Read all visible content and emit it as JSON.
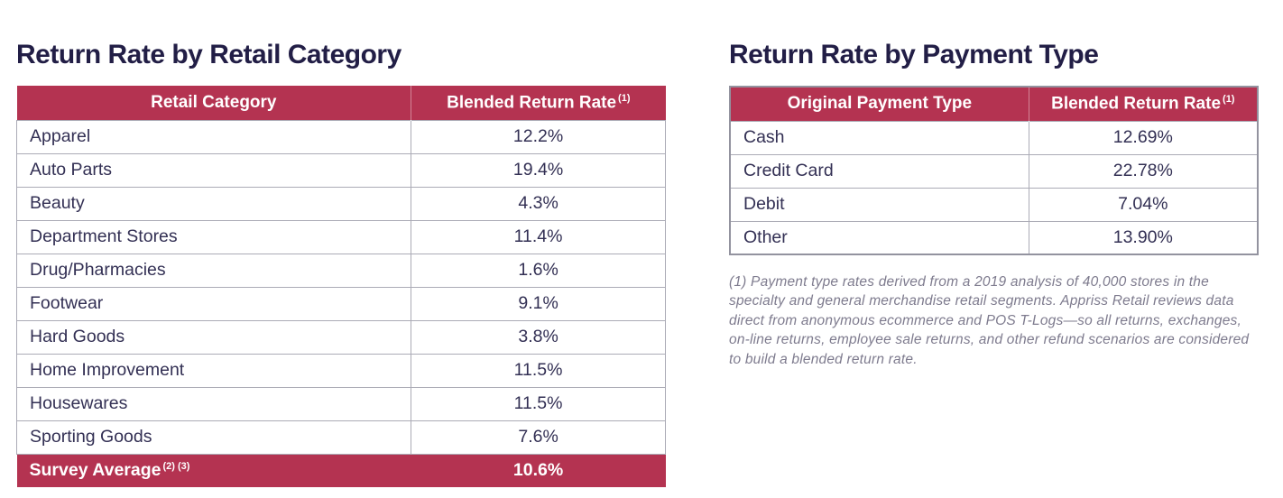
{
  "colors": {
    "crimson": "#B43351",
    "title": "#221E46",
    "body-text": "#333054",
    "border": "#ABABB6",
    "outer-border": "#93939F",
    "footnote": "#7E7B8E"
  },
  "left_table": {
    "title": "Return Rate by Retail Category",
    "columns": [
      {
        "label": "Retail Category",
        "superscript": ""
      },
      {
        "label": "Blended Return Rate",
        "superscript": "(1)"
      }
    ],
    "rows": [
      {
        "category": "Apparel",
        "rate": "12.2%"
      },
      {
        "category": "Auto Parts",
        "rate": "19.4%"
      },
      {
        "category": "Beauty",
        "rate": "4.3%"
      },
      {
        "category": "Department Stores",
        "rate": "11.4%"
      },
      {
        "category": "Drug/Pharmacies",
        "rate": "1.6%"
      },
      {
        "category": "Footwear",
        "rate": "9.1%"
      },
      {
        "category": "Hard Goods",
        "rate": "3.8%"
      },
      {
        "category": "Home Improvement",
        "rate": "11.5%"
      },
      {
        "category": "Housewares",
        "rate": "11.5%"
      },
      {
        "category": "Sporting Goods",
        "rate": "7.6%"
      }
    ],
    "footer": {
      "label": "Survey Average",
      "superscript": "(2) (3)",
      "rate": "10.6%"
    }
  },
  "right_table": {
    "title": "Return Rate by Payment Type",
    "columns": [
      {
        "label": "Original Payment Type",
        "superscript": ""
      },
      {
        "label": "Blended Return Rate",
        "superscript": "(1)"
      }
    ],
    "rows": [
      {
        "category": "Cash",
        "rate": "12.69%"
      },
      {
        "category": "Credit Card",
        "rate": "22.78%"
      },
      {
        "category": "Debit",
        "rate": "7.04%"
      },
      {
        "category": "Other",
        "rate": "13.90%"
      }
    ],
    "footnote": "(1) Payment type rates derived from a 2019 analysis of 40,000 stores in the specialty and general merchandise retail segments. Appriss Retail reviews data direct from anonymous ecommerce and POS T-Logs—so all returns, exchanges, on-line returns, employee sale returns, and other refund scenarios are considered to build a blended return rate."
  },
  "chart_data": [
    {
      "type": "table",
      "title": "Return Rate by Retail Category",
      "columns": [
        "Retail Category",
        "Blended Return Rate (1)"
      ],
      "categories": [
        "Apparel",
        "Auto Parts",
        "Beauty",
        "Department Stores",
        "Drug/Pharmacies",
        "Footwear",
        "Hard Goods",
        "Home Improvement",
        "Housewares",
        "Sporting Goods"
      ],
      "values": [
        12.2,
        19.4,
        4.3,
        11.4,
        1.6,
        9.1,
        3.8,
        11.5,
        11.5,
        7.6
      ],
      "summary_row": {
        "label": "Survey Average (2) (3)",
        "value": 10.6
      },
      "unit": "%"
    },
    {
      "type": "table",
      "title": "Return Rate by Payment Type",
      "columns": [
        "Original Payment Type",
        "Blended Return Rate (1)"
      ],
      "categories": [
        "Cash",
        "Credit Card",
        "Debit",
        "Other"
      ],
      "values": [
        12.69,
        22.78,
        7.04,
        13.9
      ],
      "unit": "%"
    }
  ]
}
